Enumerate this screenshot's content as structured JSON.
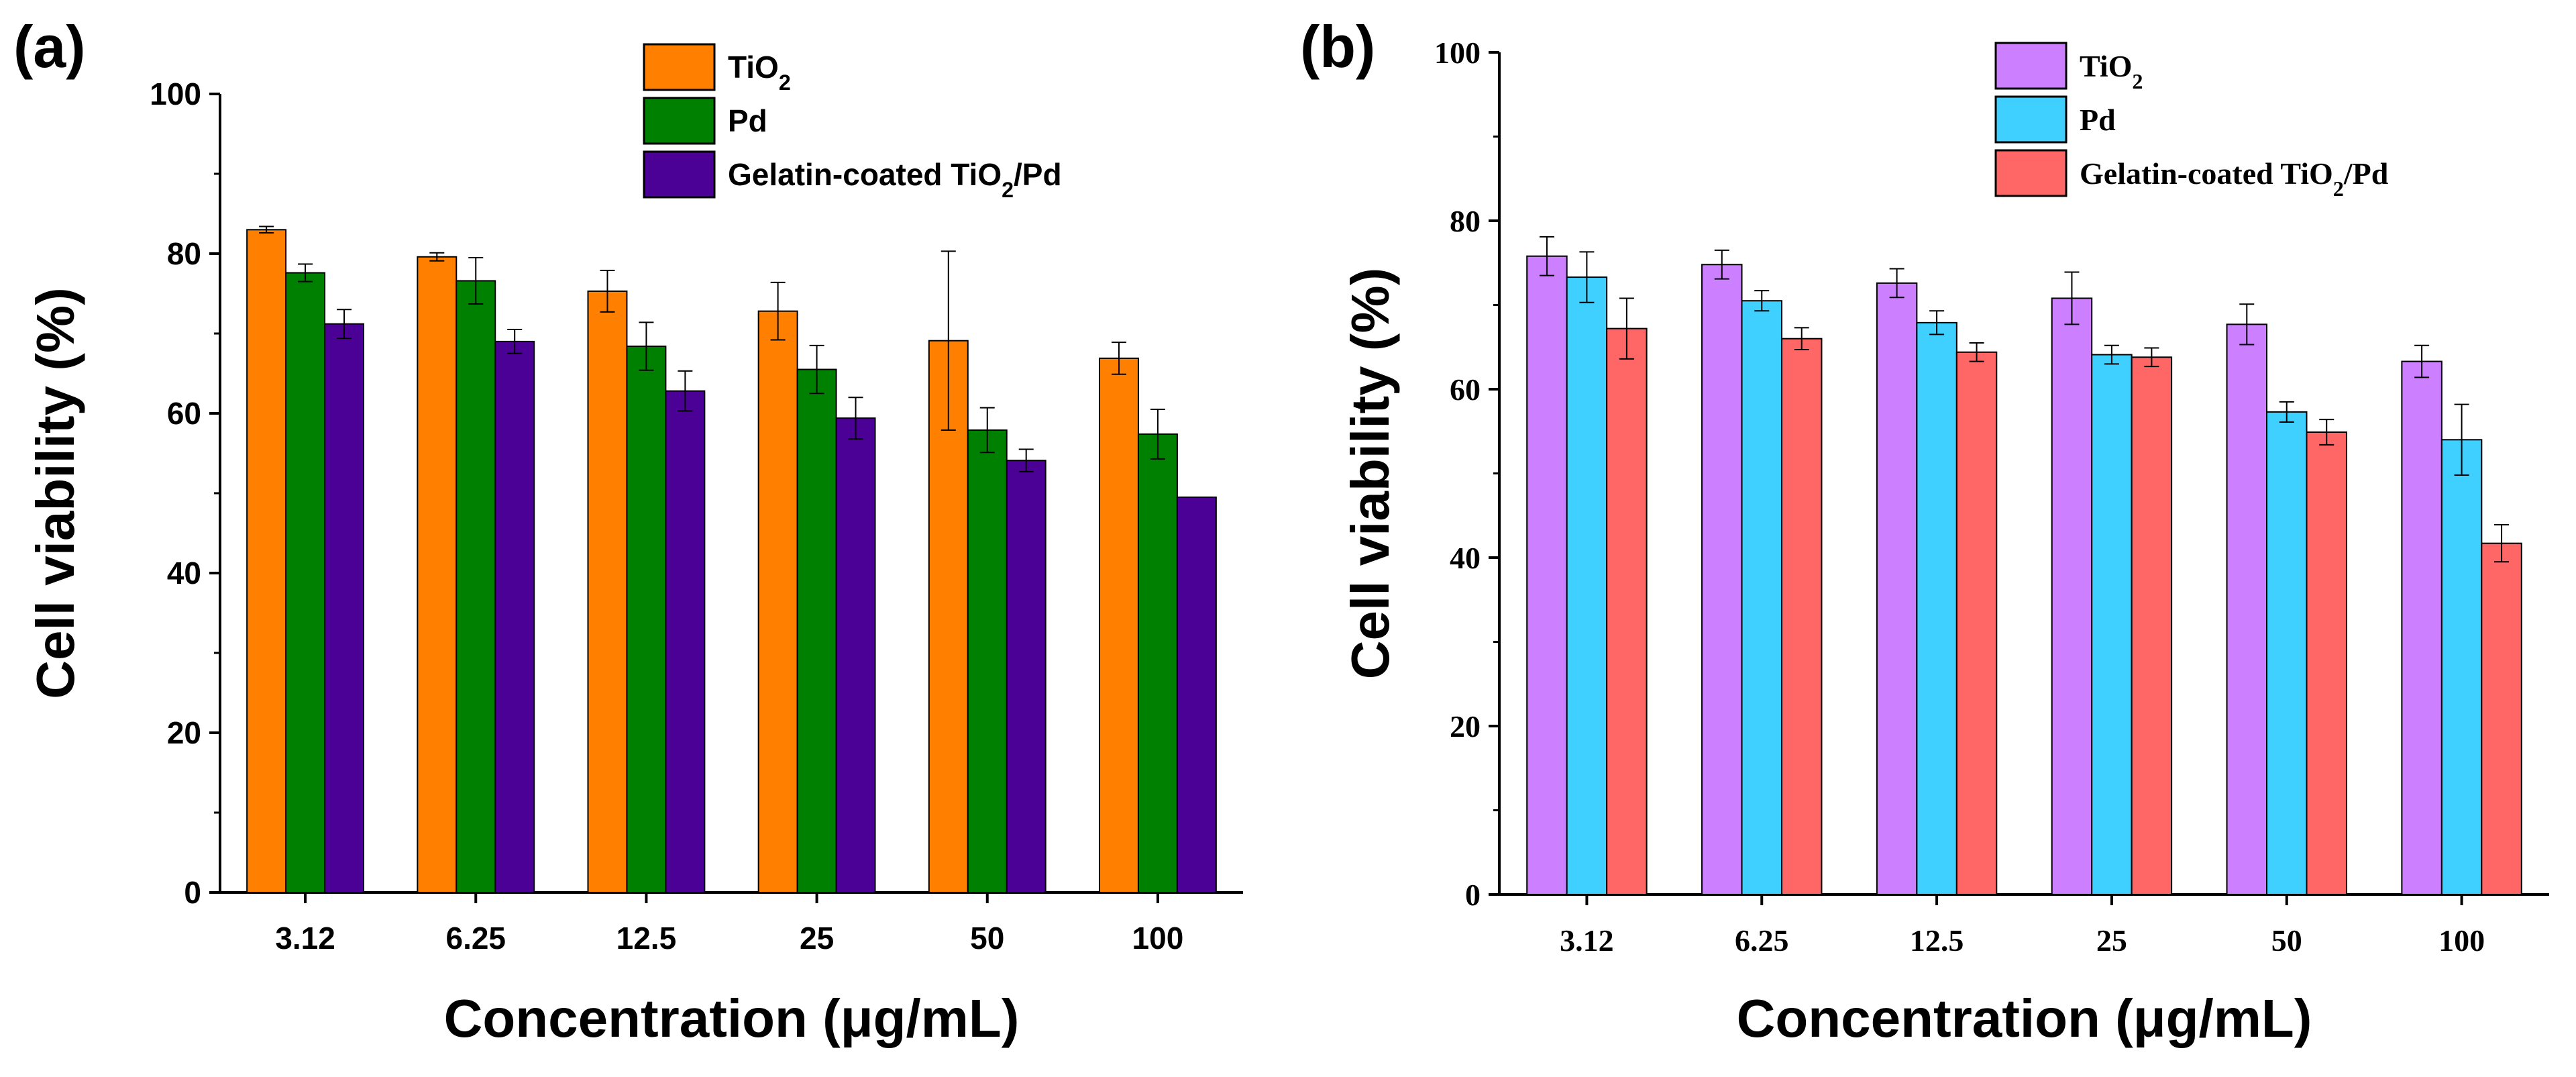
{
  "chart_data": [
    {
      "type": "bar",
      "panel_label": "(a)",
      "title": "",
      "xlabel": "Concentration (μg/mL)",
      "ylabel": "Cell viability (%)",
      "ylim": [
        0,
        100
      ],
      "yticks": [
        "0",
        "20",
        "40",
        "60",
        "80",
        "100"
      ],
      "categories": [
        "3.12",
        "6.25",
        "12.5",
        "25",
        "50",
        "100"
      ],
      "legend_position": "top-right",
      "series": [
        {
          "name": "TiO₂",
          "color": "#FF8000",
          "values": [
            83,
            79.6,
            75.3,
            72.8,
            69.1,
            66.9
          ],
          "errors": [
            0.4,
            0.5,
            2.6,
            3.6,
            11.2,
            2.0
          ]
        },
        {
          "name": "Pd",
          "color": "#008000",
          "values": [
            77.6,
            76.6,
            68.4,
            65.5,
            57.9,
            57.4
          ],
          "errors": [
            1.1,
            2.9,
            3.0,
            3.0,
            2.8,
            3.1
          ]
        },
        {
          "name": "Gelatin-coated TiO₂/Pd",
          "color": "#4B0096",
          "values": [
            71.2,
            69.0,
            62.8,
            59.4,
            54.1,
            49.5
          ],
          "errors": [
            1.8,
            1.5,
            2.5,
            2.6,
            1.4,
            0.0
          ]
        }
      ]
    },
    {
      "type": "bar",
      "panel_label": "(b)",
      "title": "",
      "xlabel": "Concentration (μg/mL)",
      "ylabel": "Cell viability (%)",
      "ylim": [
        0,
        100
      ],
      "yticks": [
        "0",
        "20",
        "40",
        "60",
        "80",
        "100"
      ],
      "categories": [
        "3.12",
        "6.25",
        "12.5",
        "25",
        "50",
        "100"
      ],
      "legend_position": "top-right",
      "series": [
        {
          "name": "TiO₂",
          "color": "#CC80FF",
          "values": [
            75.8,
            74.8,
            72.6,
            70.8,
            67.7,
            63.3
          ],
          "errors": [
            2.3,
            1.7,
            1.7,
            3.1,
            2.4,
            1.9
          ]
        },
        {
          "name": "Pd",
          "color": "#40D0FF",
          "values": [
            73.3,
            70.5,
            67.9,
            64.1,
            57.3,
            54.0
          ],
          "errors": [
            3.0,
            1.2,
            1.4,
            1.1,
            1.2,
            4.2
          ]
        },
        {
          "name": "Gelatin-coated TiO₂/Pd",
          "color": "#FF6666",
          "values": [
            67.2,
            66.0,
            64.4,
            63.8,
            54.9,
            41.7
          ],
          "errors": [
            3.6,
            1.3,
            1.1,
            1.1,
            1.5,
            2.2
          ]
        }
      ]
    }
  ]
}
